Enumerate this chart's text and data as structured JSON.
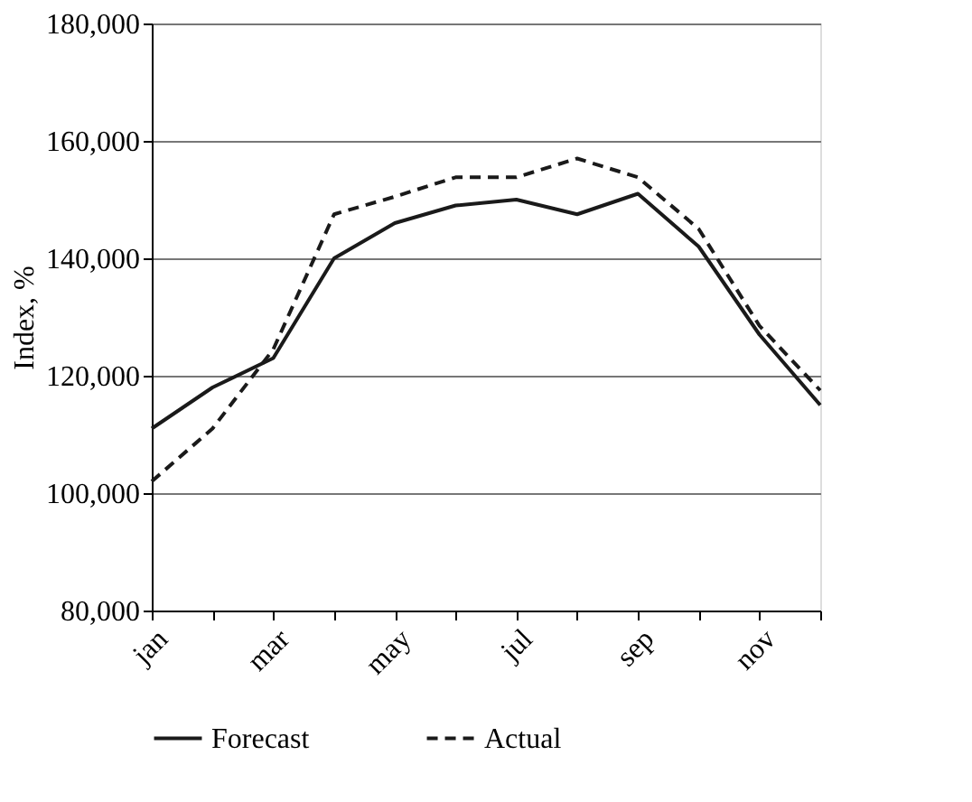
{
  "chart_data": {
    "type": "line",
    "ylabel": "Index, %",
    "categories": [
      "jan",
      null,
      "mar",
      null,
      "may",
      null,
      "jul",
      null,
      "sep",
      null,
      "nov",
      null
    ],
    "series": [
      {
        "name": "Forecast",
        "color": "#1a1a1a",
        "line_style": "solid",
        "values": [
          111000,
          118000,
          123000,
          140000,
          146000,
          149000,
          150000,
          147500,
          151000,
          142000,
          127000,
          115000
        ]
      },
      {
        "name": "Actual",
        "color": "#1a1a1a",
        "line_style": "dashed",
        "values": [
          102000,
          111000,
          124500,
          147500,
          150500,
          153800,
          153800,
          157000,
          153800,
          145000,
          128500,
          117500
        ]
      }
    ],
    "ylim": [
      80000,
      180000
    ],
    "yticks": [
      {
        "value": 80000,
        "label": "80,000"
      },
      {
        "value": 100000,
        "label": "100,000"
      },
      {
        "value": 120000,
        "label": "120,000"
      },
      {
        "value": 140000,
        "label": "140,000"
      },
      {
        "value": 160000,
        "label": "160,000"
      },
      {
        "value": 180000,
        "label": "180,000"
      }
    ],
    "grid": "y",
    "legend": "bottom",
    "marker": "none"
  }
}
